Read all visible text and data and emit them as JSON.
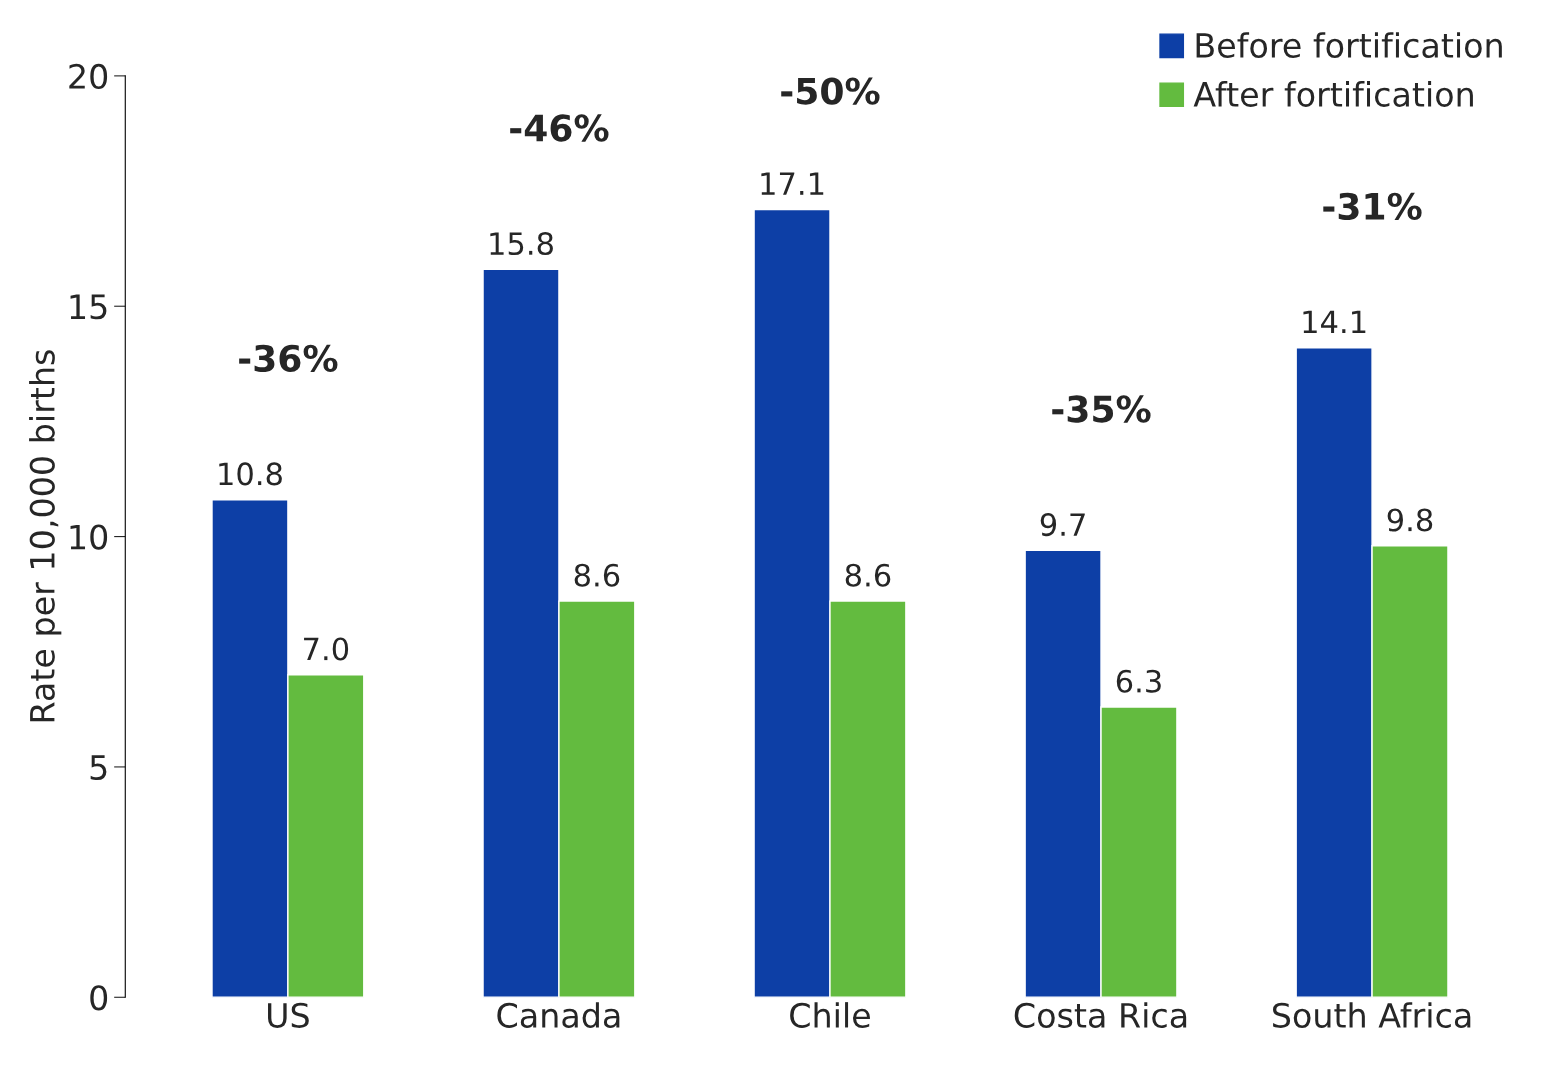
{
  "chart_data": {
    "type": "bar",
    "ylabel": "Rate per 10,000 births",
    "categories": [
      "US",
      "Canada",
      "Chile",
      "Costa Rica",
      "South Africa"
    ],
    "series": [
      {
        "name": "Before fortification",
        "color": "#0d3fa6",
        "values": [
          10.8,
          15.8,
          17.1,
          9.7,
          14.1
        ]
      },
      {
        "name": "After fortification",
        "color": "#63bb3f",
        "values": [
          7.0,
          8.6,
          8.6,
          6.3,
          9.8
        ]
      }
    ],
    "value_labels": [
      [
        "10.8",
        "15.8",
        "17.1",
        "9.7",
        "14.1"
      ],
      [
        "7.0",
        "8.6",
        "8.6",
        "6.3",
        "9.8"
      ]
    ],
    "ylim": [
      0,
      20
    ],
    "yticks": [
      0,
      5,
      10,
      15,
      20
    ],
    "grid": false,
    "legend": "top right",
    "annotations": [
      "-36%",
      "-46%",
      "-50%",
      "-35%",
      "-31%"
    ]
  }
}
